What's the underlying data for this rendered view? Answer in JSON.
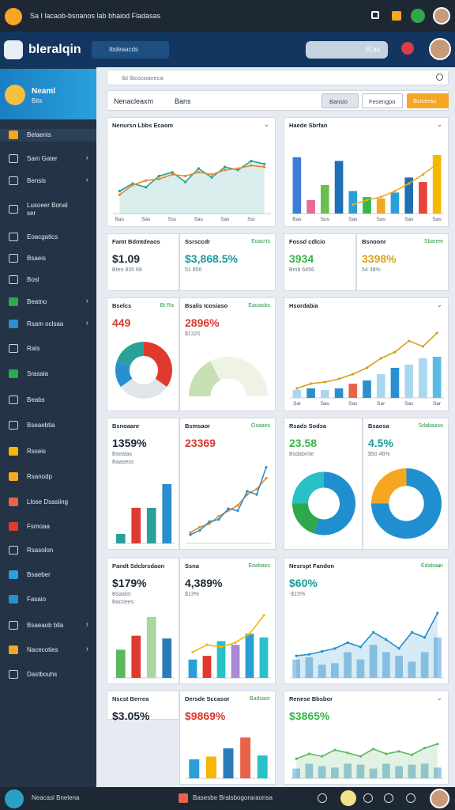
{
  "topbar": {
    "title": "Sa  I lacaob-bsnanos lab bhaiod Fladasas"
  },
  "header": {
    "brand": "bleralqin",
    "search": "Ibdeaacds",
    "button": "IS:aa"
  },
  "sidebar": {
    "profile": {
      "name": "Neaml",
      "sub": "Bits"
    },
    "items": [
      "Belaenis",
      "Sam Gater",
      "Bensis",
      "Lusoeer Bonal ser",
      "Eoacgatics",
      "Bsaeis",
      "Bosl",
      "Beatno",
      "Rsam oclsaa",
      "Rats",
      "Srasaia",
      "Beabs",
      "Bseaebtia",
      "Rsseis",
      "Rsanodp",
      "Llose Dsasiing",
      "Fsmoaa",
      "Rsasolon",
      "Bsaeber",
      "Fasaio",
      "Bsaeaob blla",
      "Nacecoties",
      "Dastbouhs"
    ]
  },
  "toolbar": {
    "search": "Ibi Ibcocoaneca",
    "tabs": [
      "Nenacleaxm",
      "Bans"
    ],
    "buttons": [
      "Bansio",
      "Fesengpo",
      "Bcicerau"
    ]
  },
  "cards": [
    {
      "title": "Nenursn Lbbs Ecaom",
      "chart": {
        "type": "combo",
        "ylim": [
          0,
          100
        ],
        "categories": [
          "Bas",
          null,
          "Sas",
          null,
          "Sss",
          null,
          "Sas",
          null,
          "Sas",
          null,
          "Ssr",
          null
        ],
        "series": [
          {
            "kind": "line",
            "color": "#2aa198",
            "area": true,
            "values": [
              30,
              40,
              35,
              50,
              55,
              42,
              60,
              48,
              62,
              58,
              70,
              66
            ]
          },
          {
            "kind": "line",
            "color": "#e8892a",
            "values": [
              25,
              38,
              44,
              46,
              52,
              50,
              55,
              52,
              58,
              60,
              64,
              62
            ]
          }
        ]
      }
    },
    {
      "title": "Haede Sbrfan",
      "chart": {
        "type": "combo",
        "ylim": [
          0,
          100
        ],
        "categories": [
          "Bas",
          null,
          "Sos",
          null,
          "Sas",
          null,
          "Sas",
          null,
          "Sas",
          null,
          "Sas"
        ],
        "series": [
          {
            "kind": "bar",
            "colors": [
              "#3b7dd8",
              "#e86a9a",
              "#6cbf4f",
              "#1f6fb5",
              "#2a9fd6",
              "#39b54a",
              "#f5a623",
              "#2a9fd6",
              "#1f6fb5",
              "#e8443a",
              "#f5b800"
            ],
            "values": [
              75,
              18,
              38,
              70,
              30,
              22,
              20,
              28,
              48,
              42,
              78
            ]
          },
          {
            "kind": "line",
            "color": "#f5a623",
            "values": [
              null,
              null,
              null,
              null,
              12,
              18,
              22,
              30,
              40,
              52,
              66
            ]
          }
        ]
      }
    },
    {
      "title": "Famt Bdmtdeaos",
      "value": "$1.09",
      "value_color": "#1c2733",
      "notes": [
        "Bteo  835 68"
      ]
    },
    {
      "title": "Ssrsccdr",
      "aside": "Eoacrts",
      "value": "$3,868.5%",
      "value_color": "#1a9a9a",
      "notes": [
        "51 856"
      ]
    },
    {
      "title": "Fossd cdlcio",
      "value": "3934",
      "value_color": "#39b54a",
      "notes": [
        "Bmb 6456"
      ]
    },
    {
      "title": "Bsnoonr",
      "aside": "Sbanee",
      "value": "3398%",
      "value_color": "#d9a21b",
      "notes": [
        "54 38%"
      ]
    },
    {
      "title": "Bselcs",
      "aside": "Bt Ra",
      "value": "449",
      "value_color": "#d63a2f",
      "chart": {
        "type": "donut",
        "values": [
          35,
          30,
          15,
          20
        ],
        "colors": [
          "#e03a2f",
          "#dfe5e8",
          "#2a8fcf",
          "#2aa198"
        ]
      }
    },
    {
      "title": "Bsalis Icosiaso",
      "aside": "Eaoaobs",
      "value": "2896%",
      "value_color": "#d63a2f",
      "notes": [
        "$1320"
      ],
      "chart": {
        "type": "gauge",
        "values": [
          35,
          65
        ],
        "colors": [
          "#c7dfb4",
          "#eef3e6"
        ]
      }
    },
    {
      "title": "Hsordabia",
      "chart": {
        "type": "combo",
        "ylim": [
          0,
          100
        ],
        "categories": [
          "Sai",
          null,
          "Sas",
          null,
          "Sas",
          null,
          "Sar",
          null,
          "Sas",
          null,
          "Sar"
        ],
        "series": [
          {
            "kind": "bar",
            "colors": [
              "#a8d8ef",
              "#2a8fcf",
              "#a8d8ef",
              "#2a8fcf",
              "#e8634a",
              "#2a8fcf",
              "#a8d8ef",
              "#2a8fcf",
              "#a8d8ef",
              "#a8d8ef",
              "#5bbbe6"
            ],
            "values": [
              10,
              12,
              10,
              12,
              18,
              22,
              30,
              38,
              42,
              50,
              52
            ]
          },
          {
            "kind": "line",
            "color": "#d4a017",
            "values": [
              12,
              18,
              20,
              24,
              30,
              38,
              50,
              58,
              72,
              65,
              82
            ]
          }
        ]
      }
    },
    {
      "title": "Bsnoaanr",
      "value": "1359%",
      "value_color": "#1c2733",
      "notes": [
        "Bsealas",
        "Baaoeos"
      ],
      "chart": {
        "type": "combo",
        "ylim": [
          0,
          60
        ],
        "series": [
          {
            "kind": "bar",
            "colors": [
              "#2aa198",
              "#e03a2f",
              "#2aa198",
              "#2a8fcf"
            ],
            "values": [
              8,
              30,
              30,
              50
            ]
          }
        ]
      }
    },
    {
      "title": "Bsmsaor",
      "aside": "Gsaaes",
      "value": "23369",
      "value_color": "#d63a2f",
      "chart": {
        "type": "combo",
        "ylim": [
          0,
          80
        ],
        "series": [
          {
            "kind": "line",
            "color": "#e8892a",
            "values": [
              10,
              15,
              18,
              25,
              30,
              35,
              45,
              50,
              60
            ]
          },
          {
            "kind": "line",
            "color": "#2a8fcf",
            "values": [
              8,
              12,
              20,
              22,
              32,
              30,
              48,
              45,
              70
            ]
          }
        ]
      }
    },
    {
      "title": "Rsads Sodsa",
      "value": "23.58",
      "value_color": "#39b54a",
      "notes": [
        "Bsdabmle"
      ],
      "chart": {
        "type": "donut",
        "values": [
          55,
          20,
          25
        ],
        "colors": [
          "#1f8fcf",
          "#2ea84a",
          "#2ac0c8"
        ]
      }
    },
    {
      "title": "Bsaosa",
      "aside": "Sdabaaso",
      "value": "4.5%",
      "value_color": "#1a9a9a",
      "notes": [
        "$50 46%"
      ],
      "chart": {
        "type": "donut",
        "values": [
          75,
          25
        ],
        "colors": [
          "#1f8fcf",
          "#f5a623"
        ]
      }
    },
    {
      "title": "Pandt Sdcbrsdaon",
      "value": "$179%",
      "value_color": "#1c2733",
      "notes": [
        "Bsaabs",
        "Bacoees"
      ],
      "chart": {
        "type": "combo",
        "ylim": [
          0,
          70
        ],
        "series": [
          {
            "kind": "bar",
            "colors": [
              "#5cb85c",
              "#e03a2f",
              "#a8d8a0",
              "#2a7ab8"
            ],
            "values": [
              30,
              45,
              65,
              42
            ]
          }
        ]
      }
    },
    {
      "title": "Ssna",
      "aside": "Eoabaes",
      "value": "4,389%",
      "value_color": "#1c2733",
      "notes": [
        "$13%"
      ],
      "chart": {
        "type": "combo",
        "ylim": [
          0,
          100
        ],
        "series": [
          {
            "kind": "bar",
            "colors": [
              "#2a9fd6",
              "#e03a2f",
              "#2ac0c8",
              "#a78bd8",
              "#2a9fd6",
              "#2ac0c8"
            ],
            "values": [
              25,
              30,
              50,
              45,
              60,
              55
            ]
          },
          {
            "kind": "line",
            "color": "#f5b800",
            "values": [
              35,
              45,
              42,
              48,
              60,
              85
            ]
          }
        ]
      }
    },
    {
      "title": "Nesrspt Fandon",
      "aside": "Edabaon",
      "value": "$60%",
      "value_color": "#1a9a9a",
      "notes": [
        "-$15%"
      ],
      "chart": {
        "type": "combo",
        "ylim": [
          0,
          100
        ],
        "series": [
          {
            "kind": "bar",
            "color": "#9cc9e6",
            "values": [
              25,
              28,
              18,
              20,
              35,
              25,
              45,
              35,
              30,
              22,
              35,
              55
            ]
          },
          {
            "kind": "line",
            "color": "#1f8fcf",
            "area": true,
            "values": [
              30,
              32,
              36,
              40,
              48,
              42,
              62,
              52,
              40,
              62,
              55,
              88
            ]
          }
        ]
      }
    },
    {
      "title": "Nscst Berrea",
      "value": "$3.05%",
      "value_color": "#1c2733"
    },
    {
      "title": "Dersde Sccasor",
      "aside": "Badsaor",
      "value": "$9869%",
      "value_color": "#d63a2f",
      "chart": {
        "type": "combo",
        "ylim": [
          0,
          90
        ],
        "series": [
          {
            "kind": "bar",
            "colors": [
              "#2a9fd6",
              "#f5b800",
              "#2a7ab8",
              "#e8634a",
              "#2ac0c8"
            ],
            "values": [
              35,
              40,
              55,
              75,
              42
            ]
          }
        ]
      }
    },
    {
      "title": "Renese Bbsbor",
      "value": "$3865%",
      "value_color": "#39b54a",
      "chart": {
        "type": "combo",
        "ylim": [
          0,
          100
        ],
        "series": [
          {
            "kind": "bar",
            "color": "#9cc9e6",
            "values": [
              20,
              30,
              25,
              22,
              30,
              28,
              20,
              30,
              25,
              28,
              30,
              22
            ]
          },
          {
            "kind": "line",
            "color": "#5cb85c",
            "area": true,
            "values": [
              40,
              50,
              45,
              58,
              52,
              45,
              60,
              50,
              55,
              48,
              62,
              70
            ]
          }
        ]
      }
    }
  ],
  "footer": {
    "left": "Neacasl Bnelena",
    "center": "Basesbe Bralsbogoraraonsa"
  }
}
